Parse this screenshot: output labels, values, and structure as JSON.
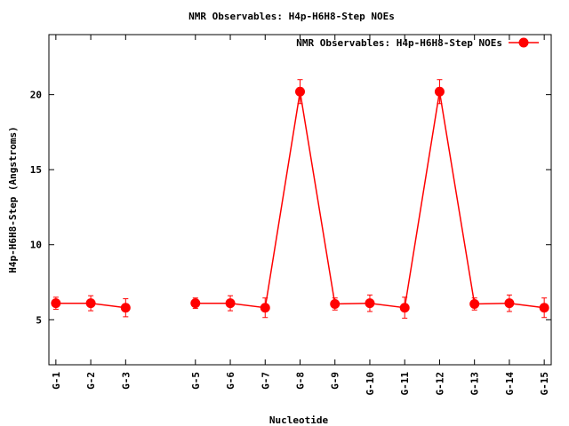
{
  "chart_data": {
    "type": "line",
    "title": "NMR Observables: H4p-H6H8-Step NOEs",
    "xlabel": "Nucleotide",
    "ylabel": "H4p-H6H8-Step (Angstroms)",
    "x_ticks": [
      "G-1",
      "G-2",
      "G-3",
      "G-5",
      "G-6",
      "G-7",
      "G-8",
      "G-9",
      "G-10",
      "G-11",
      "G-12",
      "G-13",
      "G-14",
      "G-15"
    ],
    "x_positions": [
      1,
      2,
      3,
      5,
      6,
      7,
      8,
      9,
      10,
      11,
      12,
      13,
      14,
      15
    ],
    "xlim": [
      0.8,
      15.2
    ],
    "ylim": [
      2,
      24
    ],
    "y_ticks": [
      5,
      10,
      15,
      20
    ],
    "legend_position": "top-right",
    "color": "#ff0000",
    "series": [
      {
        "name": "NMR Observables: H4p-H6H8-Step NOEs",
        "segments": [
          {
            "x": [
              1,
              2,
              3
            ],
            "y": [
              6.1,
              6.1,
              5.8
            ],
            "err": [
              0.4,
              0.5,
              0.6
            ]
          },
          {
            "x": [
              5,
              6,
              7,
              8,
              9,
              10,
              11,
              12,
              13,
              14,
              15
            ],
            "y": [
              6.1,
              6.1,
              5.8,
              20.2,
              6.05,
              6.1,
              5.8,
              20.2,
              6.05,
              6.1,
              5.8
            ],
            "err": [
              0.35,
              0.5,
              0.65,
              0.8,
              0.4,
              0.55,
              0.7,
              0.8,
              0.4,
              0.55,
              0.65
            ]
          }
        ]
      }
    ]
  }
}
